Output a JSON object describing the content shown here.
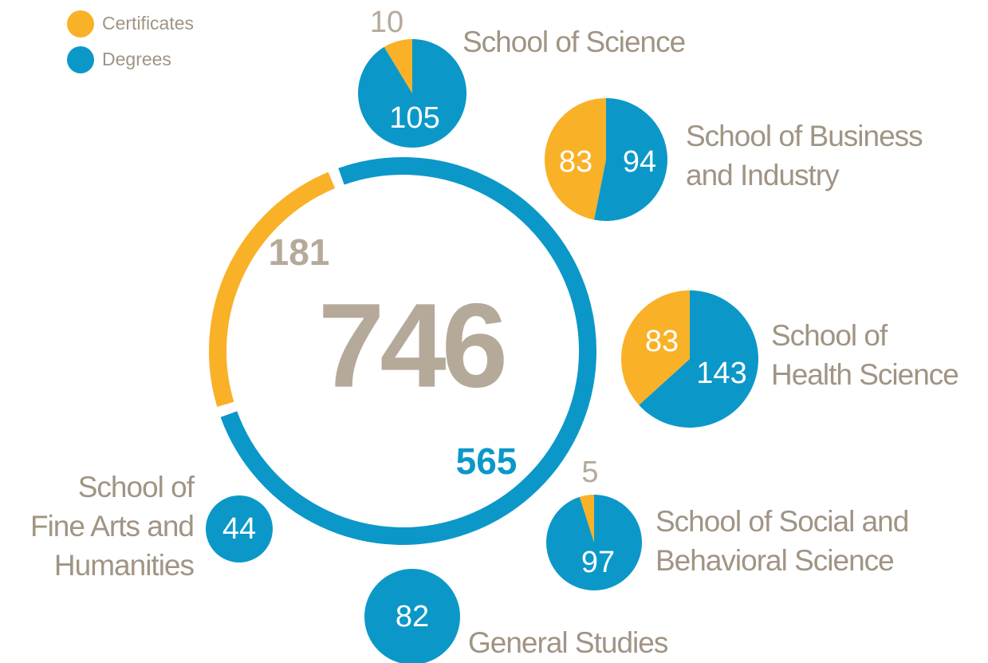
{
  "chart_data": [
    {
      "type": "donut",
      "categories": [
        "Certificates",
        "Degrees"
      ],
      "colors": [
        "#f9b127",
        "#0b98c9"
      ],
      "values": [
        181,
        565
      ],
      "total": 746
    },
    {
      "type": "pie",
      "title": [
        "School of Science"
      ],
      "values": [
        10,
        105
      ]
    },
    {
      "type": "pie",
      "title": [
        "School of Business",
        "and Industry"
      ],
      "values": [
        83,
        94
      ]
    },
    {
      "type": "pie",
      "title": [
        "School of",
        "Health Science"
      ],
      "values": [
        83,
        143
      ]
    },
    {
      "type": "pie",
      "title": [
        "School of Social and",
        "Behavioral Science"
      ],
      "values": [
        5,
        97
      ]
    },
    {
      "type": "pie",
      "title": [
        "School of",
        "Fine Arts and",
        "Humanities"
      ],
      "values": [
        0,
        44
      ]
    },
    {
      "type": "pie",
      "title": [
        "General Studies"
      ],
      "values": [
        0,
        82
      ]
    }
  ]
}
